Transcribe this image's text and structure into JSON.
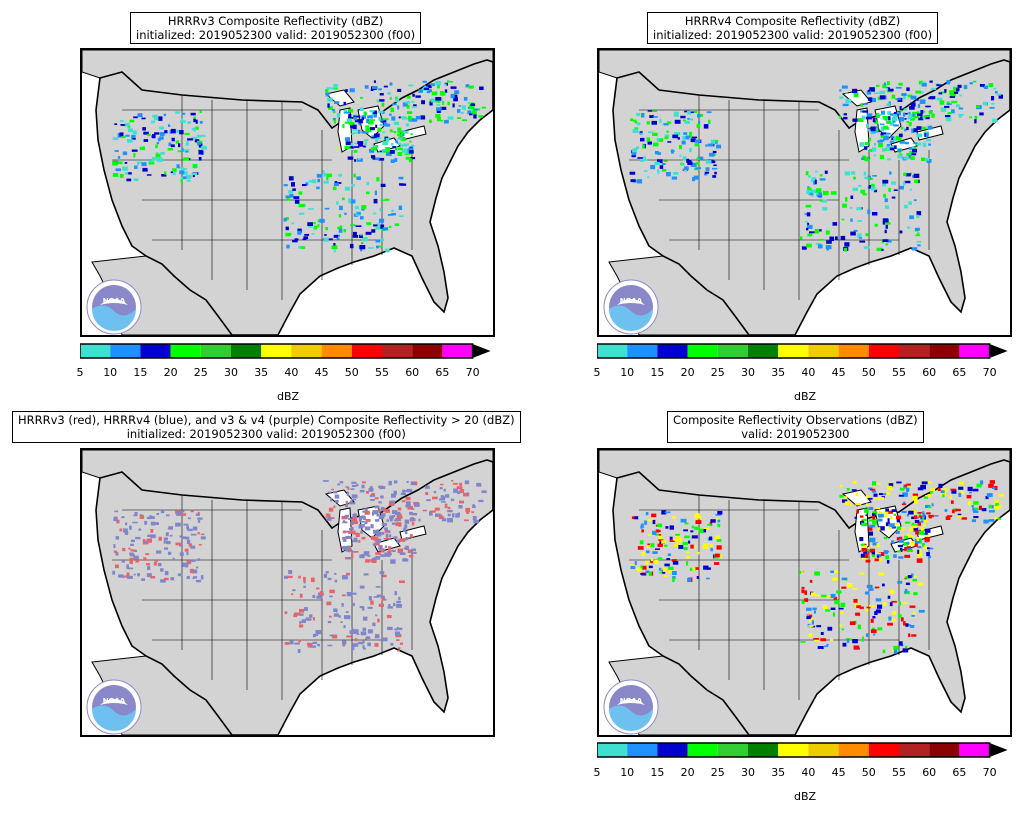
{
  "panels": [
    {
      "id": "hrrrv3",
      "title_line1": "HRRRv3 Composite Reflectivity (dBZ)",
      "title_line2": "initialized: 2019052300 valid: 2019052300 (f00)",
      "has_colorbar": true,
      "echo_colors": [
        "#40e0d0",
        "#1e90ff",
        "#0000cd",
        "#00ff00"
      ]
    },
    {
      "id": "hrrrv4",
      "title_line1": "HRRRv4 Composite Reflectivity (dBZ)",
      "title_line2": "initialized: 2019052300 valid: 2019052300 (f00)",
      "has_colorbar": true,
      "echo_colors": [
        "#40e0d0",
        "#1e90ff",
        "#0000cd",
        "#00ff00"
      ]
    },
    {
      "id": "compare",
      "title_line1": "HRRRv3 (red), HRRRv4 (blue), and v3 & v4 (purple) Composite Reflectivity > 20 (dBZ)",
      "title_line2": "initialized: 2019052300 valid: 2019052300 (f00)",
      "has_colorbar": false,
      "echo_colors": [
        "#e8646b",
        "#8185c9",
        "#8185c9"
      ]
    },
    {
      "id": "obs",
      "title_line1": "Composite Reflectivity Observations (dBZ)",
      "title_line2": "valid: 2019052300",
      "has_colorbar": true,
      "echo_colors": [
        "#00ff00",
        "#1e90ff",
        "#0000cd",
        "#ffff00",
        "#ff0000"
      ]
    }
  ],
  "colorbar": {
    "label": "dBZ",
    "ticks": [
      "5",
      "10",
      "15",
      "20",
      "25",
      "30",
      "35",
      "40",
      "45",
      "50",
      "55",
      "60",
      "65",
      "70"
    ],
    "colors": [
      "#40e0d0",
      "#1e90ff",
      "#0000cd",
      "#00ff00",
      "#32cd32",
      "#008000",
      "#ffff00",
      "#eecc00",
      "#ff8c00",
      "#ff0000",
      "#b22222",
      "#8b0000",
      "#ff00ff"
    ]
  },
  "logo": {
    "text": "NOAA"
  },
  "style": {
    "land": "#d3d3d3",
    "water": "#ffffff",
    "border": "#000000"
  }
}
